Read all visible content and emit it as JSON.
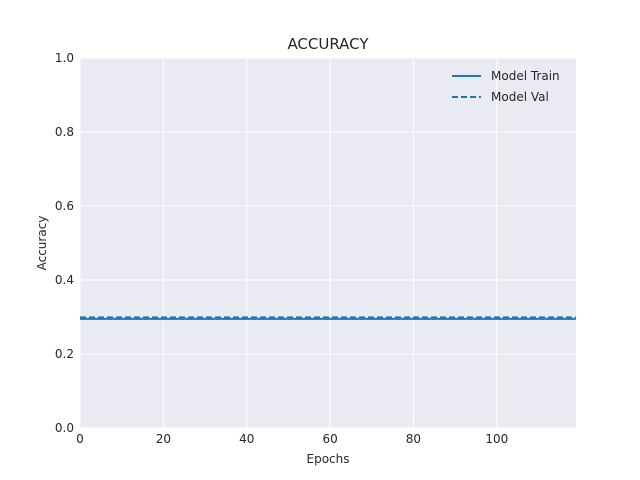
{
  "chart_data": {
    "type": "line",
    "title": "ACCURACY",
    "xlabel": "Epochs",
    "ylabel": "Accuracy",
    "xlim": [
      0,
      119
    ],
    "ylim": [
      0.0,
      1.0
    ],
    "xticks": [
      0,
      20,
      40,
      60,
      80,
      100
    ],
    "xtick_labels": [
      "0",
      "20",
      "40",
      "60",
      "80",
      "100"
    ],
    "yticks": [
      0.0,
      0.2,
      0.4,
      0.6,
      0.8,
      1.0
    ],
    "ytick_labels": [
      "0.0",
      "0.2",
      "0.4",
      "0.6",
      "0.8",
      "1.0"
    ],
    "grid": true,
    "legend_position": "top-right",
    "series": [
      {
        "name": "Model Train",
        "x": [
          0,
          119
        ],
        "y": [
          0.295,
          0.295
        ],
        "style": "solid",
        "color": "#1f77b4"
      },
      {
        "name": "Model Val",
        "x": [
          0,
          119
        ],
        "y": [
          0.299,
          0.299
        ],
        "style": "dashed",
        "color": "#1f77b4"
      }
    ],
    "colors": {
      "plot_background": "#eaeaf2",
      "grid": "#ffffff"
    }
  }
}
